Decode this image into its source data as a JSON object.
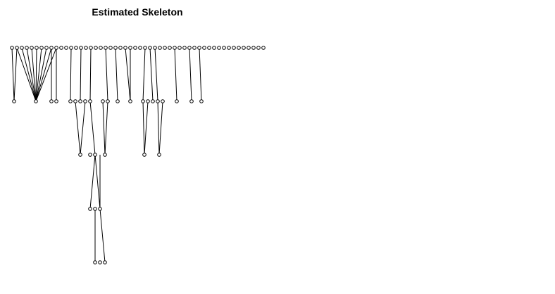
{
  "title": "Estimated Skeleton",
  "colors": {
    "edge": "#000000",
    "node_fill": "#ffffff",
    "node_stroke": "#000000"
  },
  "graph": {
    "levels": [
      {
        "level": 0,
        "node_count": 52
      },
      {
        "level": 1,
        "node_count": 24
      },
      {
        "level": 2,
        "node_count": 6
      },
      {
        "level": 3,
        "node_count": 3
      },
      {
        "level": 4,
        "node_count": 3
      }
    ]
  }
}
